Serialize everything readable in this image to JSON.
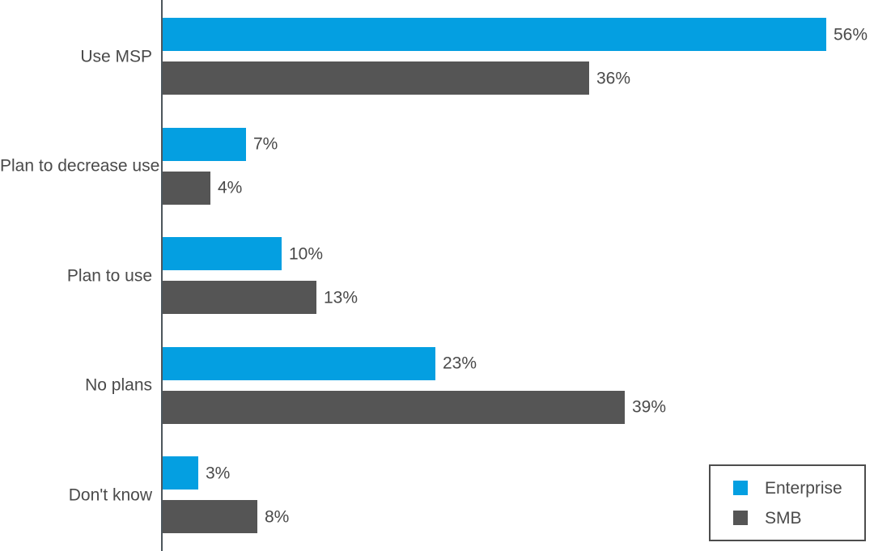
{
  "chart_data": {
    "type": "bar",
    "orientation": "horizontal",
    "title": "",
    "xlabel": "",
    "ylabel": "",
    "categories": [
      "Use MSP",
      "Plan to decrease use",
      "Plan to use",
      "No plans",
      "Don't know"
    ],
    "series": [
      {
        "name": "Enterprise",
        "color": "#049fe1",
        "values": [
          56,
          7,
          10,
          23,
          3
        ]
      },
      {
        "name": "SMB",
        "color": "#555555",
        "values": [
          36,
          4,
          13,
          39,
          8
        ]
      }
    ],
    "data_labels": {
      "enterprise": [
        "56%",
        "7%",
        "10%",
        "23%",
        "3%"
      ],
      "smb": [
        "36%",
        "4%",
        "13%",
        "39%",
        "8%"
      ]
    },
    "xlim": [
      0,
      60
    ],
    "grid": false,
    "axis_ticks_visible": false,
    "legend_position": "bottom-right"
  },
  "colors": {
    "enterprise": "#049fe1",
    "smb": "#555555",
    "text": "#4a4a4a",
    "axis_line": "#4d565c",
    "legend_border": "#4d4d4d",
    "background": "#ffffff"
  }
}
